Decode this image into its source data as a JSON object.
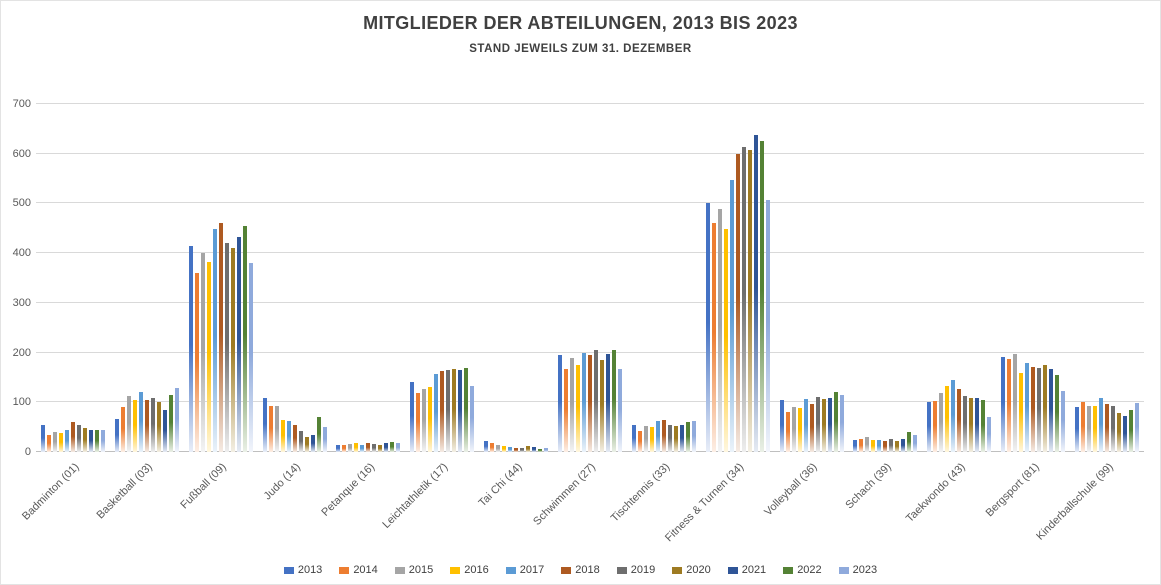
{
  "title": "MITGLIEDER DER ABTEILUNGEN, 2013 BIS 2023",
  "subtitle": "STAND JEWEILS ZUM 31. DEZEMBER",
  "chart_data": {
    "type": "bar",
    "title": "MITGLIEDER DER ABTEILUNGEN, 2013 BIS 2023",
    "subtitle": "STAND JEWEILS ZUM 31. DEZEMBER",
    "ylim": [
      0,
      700
    ],
    "yticks": [
      0,
      100,
      200,
      300,
      400,
      500,
      600,
      700
    ],
    "grid": true,
    "legend_position": "bottom",
    "categories": [
      "Badminton (01)",
      "Basketball (03)",
      "Fußball (09)",
      "Judo (14)",
      "Petanque (16)",
      "Leichtathletik (17)",
      "Tai Chi (44)",
      "Schwimmen (27)",
      "Tischtennis (33)",
      "Fitness & Turnen (34)",
      "Volleyball (36)",
      "Schach (39)",
      "Taekwondo (43)",
      "Bergsport (81)",
      "Kinderballschule (99)"
    ],
    "series": [
      {
        "name": "2013",
        "color": "#4472C4",
        "values": [
          55,
          66,
          415,
          108,
          15,
          140,
          22,
          196,
          55,
          500,
          105,
          25,
          100,
          192,
          90
        ]
      },
      {
        "name": "2014",
        "color": "#ED7D31",
        "values": [
          35,
          91,
          360,
          92,
          14,
          118,
          18,
          168,
          42,
          460,
          80,
          26,
          102,
          188,
          100
        ]
      },
      {
        "name": "2015",
        "color": "#A5A5A5",
        "values": [
          40,
          112,
          400,
          92,
          16,
          127,
          15,
          190,
          52,
          488,
          90,
          30,
          118,
          197,
          93
        ]
      },
      {
        "name": "2016",
        "color": "#FFC000",
        "values": [
          38,
          105,
          382,
          65,
          18,
          130,
          12,
          175,
          50,
          448,
          88,
          25,
          133,
          160,
          93
        ]
      },
      {
        "name": "2017",
        "color": "#5B9BD5",
        "values": [
          45,
          120,
          448,
          62,
          15,
          158,
          10,
          200,
          62,
          548,
          107,
          25,
          145,
          180,
          108
        ]
      },
      {
        "name": "2018",
        "color": "#AE5A21",
        "values": [
          60,
          105,
          460,
          55,
          18,
          163,
          8,
          195,
          65,
          600,
          97,
          23,
          127,
          172,
          96
        ]
      },
      {
        "name": "2019",
        "color": "#6E6E6E",
        "values": [
          55,
          108,
          420,
          42,
          16,
          165,
          8,
          205,
          55,
          613,
          110,
          26,
          113,
          170,
          93
        ]
      },
      {
        "name": "2020",
        "color": "#9E7B22",
        "values": [
          48,
          100,
          410,
          30,
          14,
          168,
          12,
          185,
          52,
          607,
          107,
          23,
          108,
          175,
          78
        ]
      },
      {
        "name": "2021",
        "color": "#2F5597",
        "values": [
          45,
          85,
          433,
          35,
          18,
          165,
          10,
          198,
          55,
          637,
          108,
          27,
          108,
          167,
          72
        ]
      },
      {
        "name": "2022",
        "color": "#548235",
        "values": [
          44,
          115,
          455,
          70,
          20,
          170,
          7,
          205,
          60,
          625,
          120,
          40,
          105,
          155,
          85
        ]
      },
      {
        "name": "2023",
        "color": "#8FAADC",
        "values": [
          45,
          128,
          380,
          50,
          18,
          133,
          8,
          168,
          62,
          508,
          115,
          34,
          70,
          123,
          98
        ]
      }
    ]
  },
  "colors": {
    "grid": "#d9d9d9",
    "axis_line": "#bfbfbf",
    "title_text": "#404040",
    "axis_text": "#595959"
  }
}
